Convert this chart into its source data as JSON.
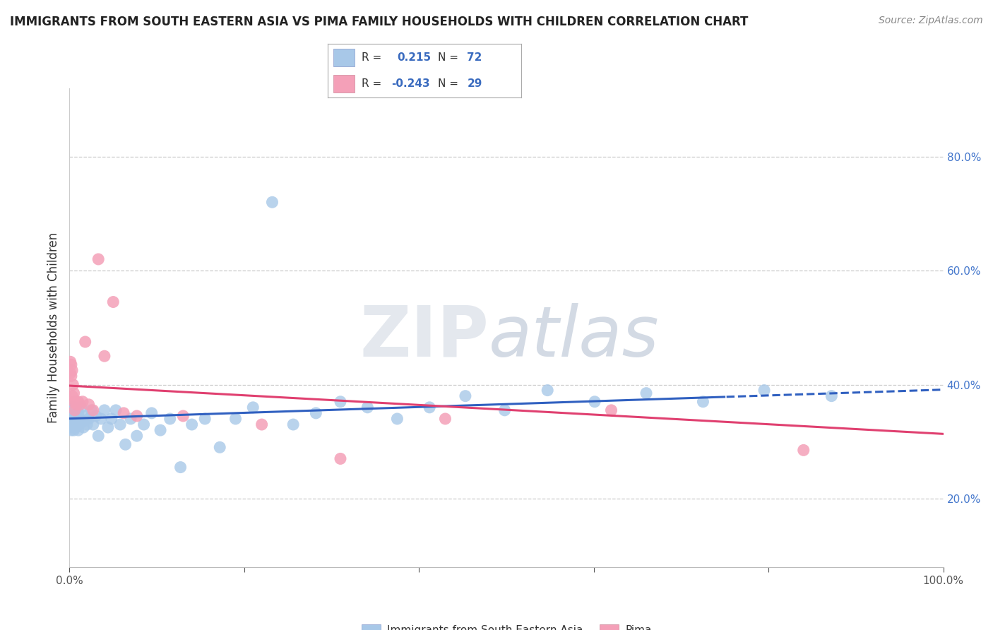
{
  "title": "IMMIGRANTS FROM SOUTH EASTERN ASIA VS PIMA FAMILY HOUSEHOLDS WITH CHILDREN CORRELATION CHART",
  "source": "Source: ZipAtlas.com",
  "ylabel": "Family Households with Children",
  "xlabel_blue": "Immigrants from South Eastern Asia",
  "xlabel_pink": "Pima",
  "R_blue": 0.215,
  "N_blue": 72,
  "R_pink": -0.243,
  "N_pink": 29,
  "xlim": [
    0.0,
    1.0
  ],
  "ylim": [
    0.08,
    0.92
  ],
  "right_yticks": [
    0.2,
    0.4,
    0.6,
    0.8
  ],
  "right_yticklabels": [
    "20.0%",
    "40.0%",
    "60.0%",
    "80.0%"
  ],
  "xticks": [
    0.0,
    0.2,
    0.4,
    0.6,
    0.8,
    1.0
  ],
  "xticklabels": [
    "0.0%",
    "",
    "",
    "",
    "",
    "100.0%"
  ],
  "blue_color": "#a8c8e8",
  "pink_color": "#f4a0b8",
  "blue_line_color": "#3060c0",
  "pink_line_color": "#e04070",
  "blue_scatter_x": [
    0.001,
    0.001,
    0.001,
    0.002,
    0.002,
    0.002,
    0.002,
    0.003,
    0.003,
    0.003,
    0.003,
    0.004,
    0.004,
    0.004,
    0.005,
    0.005,
    0.005,
    0.006,
    0.006,
    0.007,
    0.007,
    0.008,
    0.008,
    0.009,
    0.01,
    0.01,
    0.011,
    0.012,
    0.013,
    0.015,
    0.016,
    0.018,
    0.02,
    0.022,
    0.025,
    0.027,
    0.03,
    0.033,
    0.036,
    0.04,
    0.044,
    0.048,
    0.053,
    0.058,
    0.064,
    0.07,
    0.077,
    0.085,
    0.094,
    0.104,
    0.115,
    0.127,
    0.14,
    0.155,
    0.172,
    0.19,
    0.21,
    0.232,
    0.256,
    0.282,
    0.31,
    0.341,
    0.375,
    0.412,
    0.453,
    0.498,
    0.547,
    0.601,
    0.66,
    0.725,
    0.795,
    0.872
  ],
  "blue_scatter_y": [
    0.34,
    0.33,
    0.35,
    0.32,
    0.36,
    0.34,
    0.355,
    0.33,
    0.345,
    0.36,
    0.325,
    0.34,
    0.355,
    0.335,
    0.32,
    0.345,
    0.36,
    0.33,
    0.35,
    0.325,
    0.34,
    0.335,
    0.355,
    0.34,
    0.32,
    0.35,
    0.33,
    0.34,
    0.36,
    0.335,
    0.325,
    0.345,
    0.33,
    0.34,
    0.355,
    0.33,
    0.345,
    0.31,
    0.34,
    0.355,
    0.325,
    0.34,
    0.355,
    0.33,
    0.295,
    0.34,
    0.31,
    0.33,
    0.35,
    0.32,
    0.34,
    0.255,
    0.33,
    0.34,
    0.29,
    0.34,
    0.36,
    0.72,
    0.33,
    0.35,
    0.37,
    0.36,
    0.34,
    0.36,
    0.38,
    0.355,
    0.39,
    0.37,
    0.385,
    0.37,
    0.39,
    0.38
  ],
  "pink_scatter_x": [
    0.001,
    0.001,
    0.002,
    0.002,
    0.003,
    0.003,
    0.004,
    0.005,
    0.005,
    0.006,
    0.007,
    0.008,
    0.01,
    0.012,
    0.015,
    0.018,
    0.022,
    0.027,
    0.033,
    0.04,
    0.05,
    0.062,
    0.077,
    0.13,
    0.22,
    0.31,
    0.43,
    0.62,
    0.84
  ],
  "pink_scatter_y": [
    0.42,
    0.44,
    0.415,
    0.435,
    0.38,
    0.425,
    0.4,
    0.37,
    0.385,
    0.355,
    0.37,
    0.365,
    0.37,
    0.365,
    0.37,
    0.475,
    0.365,
    0.355,
    0.62,
    0.45,
    0.545,
    0.35,
    0.345,
    0.345,
    0.33,
    0.27,
    0.34,
    0.355,
    0.285
  ]
}
